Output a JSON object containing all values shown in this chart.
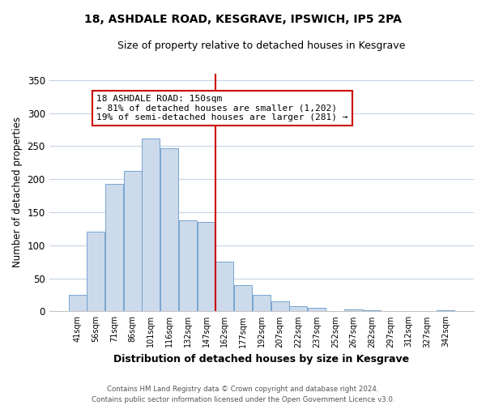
{
  "title": "18, ASHDALE ROAD, KESGRAVE, IPSWICH, IP5 2PA",
  "subtitle": "Size of property relative to detached houses in Kesgrave",
  "xlabel": "Distribution of detached houses by size in Kesgrave",
  "ylabel": "Number of detached properties",
  "bar_labels": [
    "41sqm",
    "56sqm",
    "71sqm",
    "86sqm",
    "101sqm",
    "116sqm",
    "132sqm",
    "147sqm",
    "162sqm",
    "177sqm",
    "192sqm",
    "207sqm",
    "222sqm",
    "237sqm",
    "252sqm",
    "267sqm",
    "282sqm",
    "297sqm",
    "312sqm",
    "327sqm",
    "342sqm"
  ],
  "bar_values": [
    25,
    120,
    193,
    213,
    262,
    247,
    138,
    135,
    75,
    40,
    25,
    15,
    8,
    5,
    0,
    3,
    1,
    0,
    0,
    0,
    1
  ],
  "bar_color": "#ccdaeb",
  "bar_edgecolor": "#6699cc",
  "ylim": [
    0,
    360
  ],
  "yticks": [
    0,
    50,
    100,
    150,
    200,
    250,
    300,
    350
  ],
  "vline_x_index": 7.5,
  "vline_color": "#cc0000",
  "annotation_title": "18 ASHDALE ROAD: 150sqm",
  "annotation_line1": "← 81% of detached houses are smaller (1,202)",
  "annotation_line2": "19% of semi-detached houses are larger (281) →",
  "annotation_box_edgecolor": "#cc0000",
  "footer_line1": "Contains HM Land Registry data © Crown copyright and database right 2024.",
  "footer_line2": "Contains public sector information licensed under the Open Government Licence v3.0.",
  "background_color": "#ffffff",
  "grid_color": "#c8d4e4"
}
